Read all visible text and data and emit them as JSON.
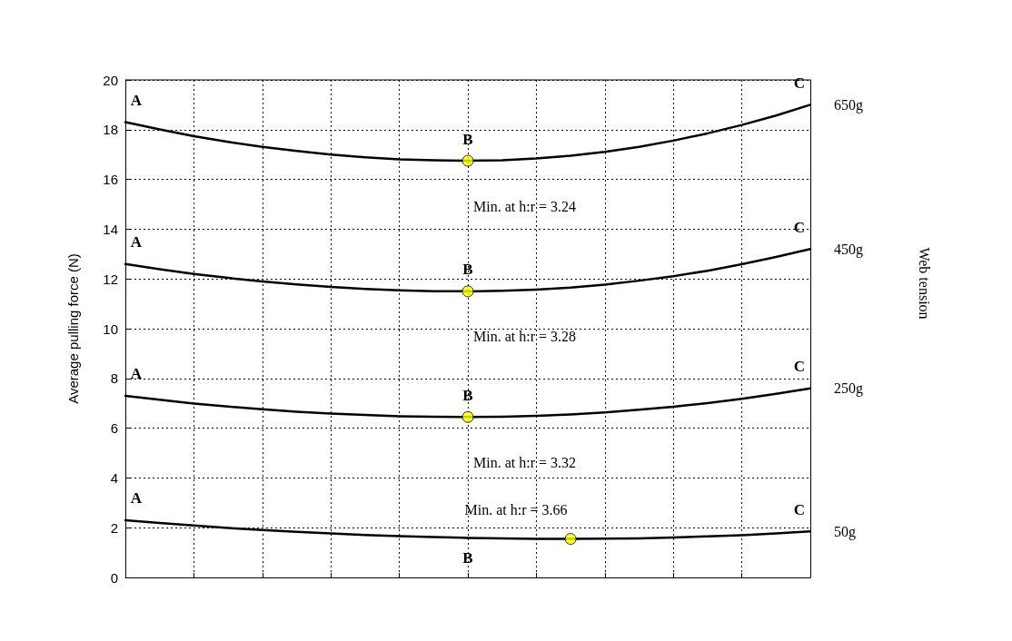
{
  "chart_data": {
    "type": "line",
    "ylabel": "Average pulling force (N)",
    "legend_title": "Web tension",
    "categories": [
      null,
      null,
      null,
      null,
      null,
      null,
      null,
      null,
      null,
      null,
      null,
      null,
      null,
      null,
      null,
      null,
      null,
      null,
      null,
      null,
      null
    ],
    "series": [
      {
        "name": "650g",
        "color": "#000000",
        "values": [
          18.3,
          18.01,
          17.74,
          17.51,
          17.31,
          17.14,
          17.0,
          16.89,
          16.81,
          16.77,
          16.75,
          16.77,
          16.84,
          16.95,
          17.11,
          17.31,
          17.56,
          17.85,
          18.19,
          18.57,
          19.0
        ]
      },
      {
        "name": "450g",
        "color": "#000000",
        "values": [
          12.6,
          12.39,
          12.2,
          12.04,
          11.9,
          11.78,
          11.68,
          11.6,
          11.54,
          11.51,
          11.5,
          11.52,
          11.57,
          11.65,
          11.77,
          11.93,
          12.11,
          12.33,
          12.59,
          12.88,
          13.2
        ]
      },
      {
        "name": "250g",
        "color": "#000000",
        "values": [
          7.3,
          7.14,
          6.99,
          6.87,
          6.76,
          6.66,
          6.59,
          6.53,
          6.48,
          6.46,
          6.45,
          6.46,
          6.5,
          6.55,
          6.63,
          6.74,
          6.86,
          7.01,
          7.18,
          7.38,
          7.6
        ]
      },
      {
        "name": "50g",
        "color": "#000000",
        "values": [
          2.3,
          2.19,
          2.09,
          1.99,
          1.91,
          1.83,
          1.77,
          1.71,
          1.66,
          1.62,
          1.59,
          1.57,
          1.55,
          1.55,
          1.56,
          1.57,
          1.61,
          1.65,
          1.7,
          1.77,
          1.85
        ]
      },
      {
        "type": "scatter",
        "marker": "circle",
        "color": "#ffff00",
        "values": [
          null,
          null,
          null,
          null,
          null,
          null,
          null,
          null,
          null,
          null,
          16.75,
          null,
          null,
          null,
          null,
          null,
          null,
          null,
          null,
          null,
          null
        ]
      },
      {
        "type": "scatter",
        "marker": "circle",
        "color": "#ffff00",
        "values": [
          null,
          null,
          null,
          null,
          null,
          null,
          null,
          null,
          null,
          null,
          11.5,
          null,
          null,
          null,
          null,
          null,
          null,
          null,
          null,
          null,
          null
        ]
      },
      {
        "type": "scatter",
        "marker": "circle",
        "color": "#ffff00",
        "values": [
          null,
          null,
          null,
          null,
          null,
          null,
          null,
          null,
          null,
          null,
          6.45,
          null,
          null,
          null,
          null,
          null,
          null,
          null,
          null,
          null,
          null
        ]
      },
      {
        "type": "scatter",
        "marker": "circle",
        "color": "#ffff00",
        "values": [
          null,
          null,
          null,
          null,
          null,
          null,
          null,
          null,
          null,
          null,
          null,
          null,
          null,
          1.55,
          null,
          null,
          null,
          null,
          null,
          null,
          null
        ]
      }
    ],
    "annotations": [
      "A",
      "B",
      "C",
      "Min. at h:r = 3.24",
      "A",
      "B",
      "C",
      "Min. at h:r = 3.28",
      "A",
      "B",
      "C",
      "Min. at h:r = 3.32",
      "A",
      "B",
      "C",
      "Min. at h:r = 3.66"
    ],
    "ylim": [
      0,
      20
    ],
    "yticks": [
      0,
      2,
      4,
      6,
      8,
      10,
      12,
      14,
      16,
      18,
      20
    ],
    "tick_labels": "y",
    "grid": true,
    "legend": false
  }
}
